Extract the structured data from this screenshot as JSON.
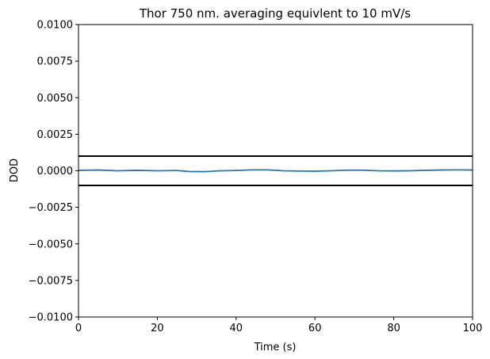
{
  "chart_data": {
    "type": "line",
    "title": "Thor 750 nm. averaging equivlent to 10 mV/s",
    "xlabel": "Time (s)",
    "ylabel": "DOD",
    "xlim": [
      0,
      100
    ],
    "ylim": [
      -0.01,
      0.01
    ],
    "x_ticks": [
      0,
      20,
      40,
      60,
      80,
      100
    ],
    "x_tick_labels": [
      "0",
      "20",
      "40",
      "60",
      "80",
      "100"
    ],
    "y_ticks": [
      0.01,
      0.0075,
      0.005,
      0.0025,
      0.0,
      -0.0025,
      -0.005,
      -0.0075,
      -0.01
    ],
    "y_tick_labels": [
      "0.0100",
      "0.0075",
      "0.0050",
      "0.0025",
      "0.0000",
      "−0.0025",
      "−0.0050",
      "−0.0075",
      "−0.0100"
    ],
    "grid": false,
    "series": [
      {
        "color": "#1f77b4",
        "x": [
          0,
          5,
          10,
          15,
          20,
          25,
          28,
          32,
          36,
          40,
          44,
          48,
          52,
          56,
          60,
          64,
          68,
          72,
          76,
          80,
          84,
          88,
          92,
          96,
          100
        ],
        "y": [
          3e-05,
          5e-05,
          0.0,
          3e-05,
          0.0,
          2e-05,
          -5e-05,
          -6e-05,
          0.0,
          2e-05,
          6e-05,
          6e-05,
          0.0,
          -2e-05,
          -3e-05,
          0.0,
          4e-05,
          4e-05,
          0.0,
          -1e-05,
          0.0,
          3e-05,
          5e-05,
          6e-05,
          5e-05
        ]
      }
    ],
    "horizontal_lines": [
      {
        "y": 0.001,
        "color": "#000000"
      },
      {
        "y": -0.001,
        "color": "#000000"
      }
    ]
  }
}
